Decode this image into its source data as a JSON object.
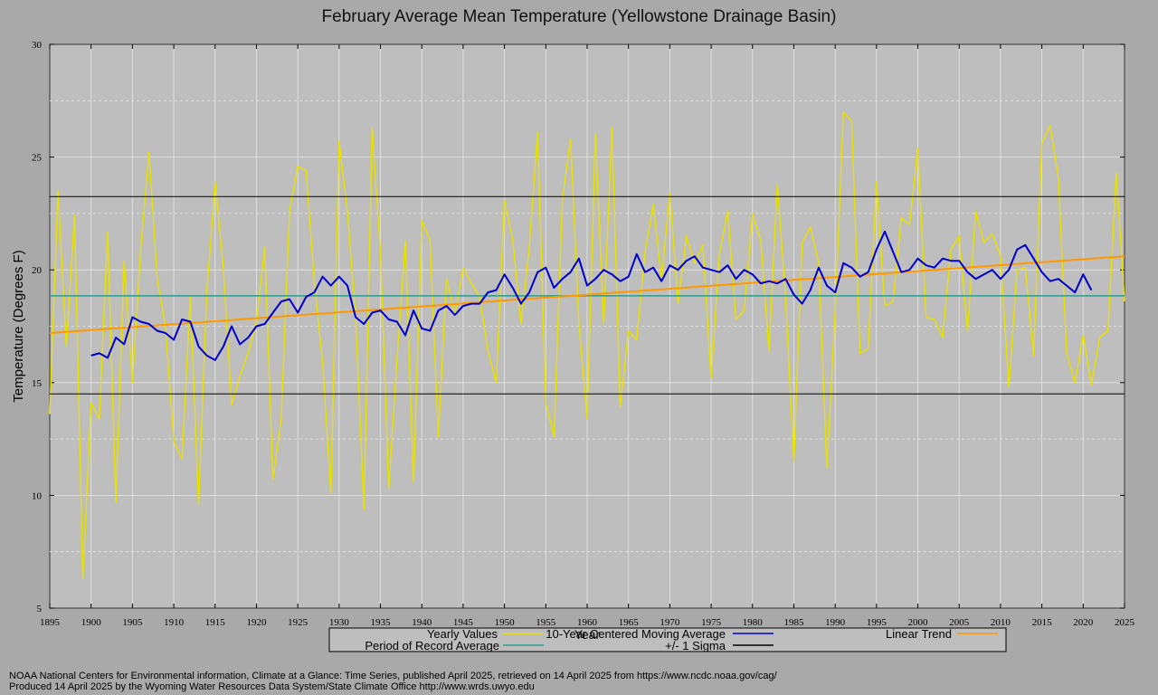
{
  "title": "February Average Mean Temperature (Yellowstone Drainage Basin)",
  "footer": {
    "line1": "NOAA National Centers for Environmental information, Climate at a Glance: Time Series, published April 2025, retrieved on 14 April 2025 from https://www.ncdc.noaa.gov/cag/",
    "line2": "Produced 14 April 2025 by the Wyoming Water Resources Data System/State Climate Office http://www.wrds.uwyo.edu"
  },
  "colors": {
    "background": "#a9a9a9",
    "plot_area": "#bebebe",
    "yearly": "#e8e000",
    "moving_average": "#0000cc",
    "trend": "#ff9900",
    "record_average": "#2a9d8f",
    "sigma": "#000000"
  },
  "chart_data": {
    "type": "line",
    "xlabel": "Year",
    "ylabel": "Temperature (Degrees F)",
    "xlim": [
      1895,
      2025
    ],
    "ylim": [
      5,
      30
    ],
    "xticks": [
      1895,
      1900,
      1905,
      1910,
      1915,
      1920,
      1925,
      1930,
      1935,
      1940,
      1945,
      1950,
      1955,
      1960,
      1965,
      1970,
      1975,
      1980,
      1985,
      1990,
      1995,
      2000,
      2005,
      2010,
      2015,
      2020,
      2025
    ],
    "yticks": [
      5,
      10,
      15,
      20,
      25,
      30
    ],
    "grid": true,
    "legend_position": "bottom",
    "legend": {
      "yearly": "Yearly Values",
      "moving_average": "10-Year Centered Moving Average",
      "trend": "Linear Trend",
      "record_average": "Period of Record Average",
      "sigma": "+/- 1 Sigma"
    },
    "series": [
      {
        "name": "Yearly Values",
        "x_start": 1895,
        "values": [
          13.6,
          23.5,
          16.6,
          22.4,
          6.3,
          14.1,
          13.4,
          21.7,
          9.7,
          20.4,
          15.0,
          20.9,
          25.2,
          19.6,
          17.5,
          12.4,
          11.6,
          18.8,
          9.6,
          19.0,
          23.9,
          20.1,
          14.0,
          15.3,
          16.3,
          17.7,
          21.0,
          10.7,
          13.4,
          22.6,
          24.6,
          24.4,
          19.5,
          15.9,
          10.1,
          25.7,
          22.6,
          17.9,
          9.4,
          26.3,
          20.8,
          10.3,
          16.0,
          21.3,
          10.6,
          22.2,
          21.3,
          12.6,
          19.6,
          18.0,
          20.1,
          19.4,
          18.8,
          16.4,
          15.0,
          23.1,
          21.3,
          17.6,
          21.0,
          26.1,
          14.1,
          12.6,
          23.1,
          25.8,
          17.6,
          13.4,
          26.0,
          17.6,
          26.3,
          13.9,
          17.3,
          16.9,
          20.8,
          22.9,
          19.6,
          23.4,
          18.5,
          21.5,
          20.3,
          21.1,
          15.2,
          20.7,
          22.6,
          17.8,
          18.2,
          22.5,
          21.3,
          16.4,
          23.8,
          18.8,
          11.5,
          21.2,
          21.9,
          20.3,
          11.2,
          18.2,
          27.0,
          26.6,
          16.3,
          16.5,
          23.9,
          18.4,
          18.6,
          22.3,
          22.0,
          25.4,
          17.9,
          17.8,
          17.0,
          20.9,
          21.5,
          17.3,
          22.6,
          21.2,
          21.6,
          20.6,
          14.8,
          20.0,
          20.1,
          16.2,
          25.6,
          26.4,
          24.1,
          16.3,
          15.0,
          17.1,
          14.9,
          17.0,
          17.3,
          24.3,
          18.6
        ]
      },
      {
        "name": "10-Year Centered Moving Average",
        "x_start": 1900,
        "values": [
          16.2,
          16.3,
          16.1,
          17.0,
          16.7,
          17.9,
          17.7,
          17.6,
          17.3,
          17.2,
          16.9,
          17.8,
          17.7,
          16.6,
          16.2,
          16.0,
          16.6,
          17.5,
          16.7,
          17.0,
          17.5,
          17.6,
          18.1,
          18.6,
          18.7,
          18.1,
          18.8,
          19.0,
          19.7,
          19.3,
          19.7,
          19.3,
          17.9,
          17.6,
          18.1,
          18.2,
          17.8,
          17.7,
          17.1,
          18.2,
          17.4,
          17.3,
          18.2,
          18.4,
          18.0,
          18.4,
          18.5,
          18.5,
          19.0,
          19.1,
          19.8,
          19.2,
          18.5,
          19.0,
          19.9,
          20.1,
          19.2,
          19.6,
          19.9,
          20.5,
          19.3,
          19.6,
          20.0,
          19.8,
          19.5,
          19.7,
          20.7,
          19.9,
          20.1,
          19.5,
          20.2,
          20.0,
          20.4,
          20.6,
          20.1,
          20.0,
          19.9,
          20.2,
          19.6,
          20.0,
          19.8,
          19.4,
          19.5,
          19.4,
          19.6,
          18.9,
          18.5,
          19.1,
          20.1,
          19.3,
          19.0,
          20.3,
          20.1,
          19.7,
          19.9,
          20.9,
          21.7,
          20.8,
          19.9,
          20.0,
          20.5,
          20.2,
          20.1,
          20.5,
          20.4,
          20.4,
          19.9,
          19.6,
          19.8,
          20.0,
          19.6,
          20.0,
          20.9,
          21.1,
          20.5,
          19.9,
          19.5,
          19.6,
          19.3,
          19.0,
          19.8,
          19.1
        ]
      }
    ],
    "linear_trend": {
      "start": [
        1895,
        17.2
      ],
      "end": [
        2025,
        20.6
      ]
    },
    "period_of_record_average": 18.85,
    "sigma_band": [
      14.5,
      23.25
    ]
  }
}
